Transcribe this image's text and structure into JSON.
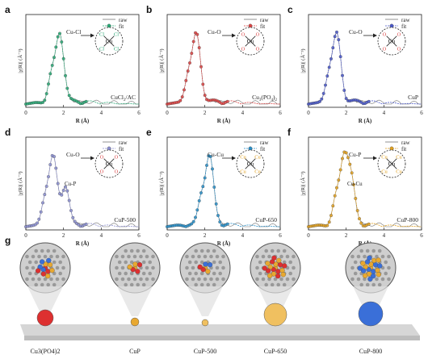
{
  "panels": [
    {
      "letter": "a",
      "sample": "CuCl2/AC",
      "sample_main": "CuCl",
      "sample_sub": "2",
      "sample_tail": "/AC",
      "bond": "Cu-Cl",
      "ligand": "Cl",
      "color": "#2aa876",
      "peak": 1.8
    },
    {
      "letter": "b",
      "sample": "Cu3(PO4)2",
      "sample_main": "Cu",
      "sample_sub": "3",
      "sample_tail": "(PO",
      "sample_sub2": "4",
      "sample_tail2": ")",
      "sample_sub3": "2",
      "bond": "Cu-O",
      "ligand": "O",
      "color": "#d94444",
      "peak": 1.55
    },
    {
      "letter": "c",
      "sample": "CuP",
      "sample_main": "CuP",
      "bond": "Cu-O",
      "ligand": "O",
      "color": "#4a58c8",
      "peak": 1.5
    },
    {
      "letter": "d",
      "sample": "CuP-500",
      "sample_main": "CuP-500",
      "bond": "Cu-O",
      "bond2": "Cu-P",
      "ligand": "O",
      "color": "#8b8fd0",
      "peak": 1.45,
      "peak2": 2.1
    },
    {
      "letter": "e",
      "sample": "CuP-650",
      "sample_main": "CuP-650",
      "bond": "Cu-Cu",
      "ligand": "Cu",
      "color": "#2a8fc8",
      "peak": 2.25
    },
    {
      "letter": "f",
      "sample": "CuP-800",
      "sample_main": "CuP-800",
      "bond": "Cu-P",
      "bond2": "Cu-Cu",
      "ligand": "Cu",
      "color": "#e0a020",
      "peak": 1.9,
      "peak2": 2.3
    }
  ],
  "axes": {
    "ylabel": "|χ(R)| (Å⁻³)",
    "xlabel": "R (Å)",
    "xticks": [
      "0",
      "2",
      "4",
      "6"
    ],
    "xlim": [
      0,
      6
    ]
  },
  "legend": {
    "raw": "raw",
    "fit": "fit"
  },
  "center_atom": "Cu",
  "panel_g": {
    "letter": "g",
    "samples": [
      "Cu3(PO4)2",
      "CuP",
      "CuP-500",
      "CuP-650",
      "CuP-800"
    ]
  },
  "colors": {
    "raw": "#777777",
    "substrate": "#c8c8c8",
    "cu": "#e8a830",
    "o": "#dd3030",
    "p": "#3a6fd8",
    "c": "#888888"
  }
}
